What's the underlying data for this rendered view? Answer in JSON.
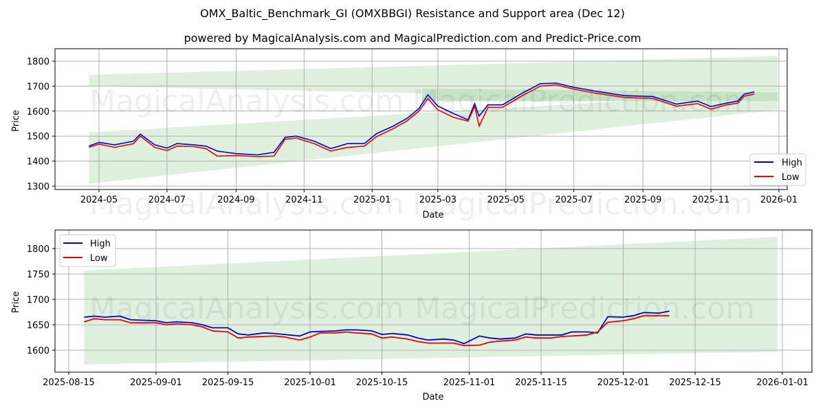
{
  "header": {
    "title": "OMX_Baltic_Benchmark_GI (OMXBBGI) Resistance and Support area (Dec 12)",
    "subtitle": "powered by MagicalAnalysis.com and MagicalPrediction.com and Predict-Price.com"
  },
  "watermarks": [
    "MagicalAnalysis.com",
    "MagicalPrediction.com"
  ],
  "colors": {
    "high": "#0000cc",
    "low": "#ee0000",
    "band_light": "#dff0df",
    "band_dark": "#c6e3c6",
    "grid": "#b0b0b0"
  },
  "chart_data": [
    {
      "type": "line",
      "title": "",
      "xlabel": "Date",
      "ylabel": "Price",
      "ylim": [
        1280,
        1850
      ],
      "yticks": [
        1300,
        1400,
        1500,
        1600,
        1700,
        1800
      ],
      "xticks": [
        "2024-05",
        "2024-07",
        "2024-09",
        "2024-11",
        "2025-01",
        "2025-03",
        "2025-05",
        "2025-07",
        "2025-09",
        "2025-11",
        "2026-01"
      ],
      "grid": true,
      "legend": {
        "position": "lower right",
        "entries": [
          "High",
          "Low"
        ]
      },
      "x": [
        "2024-04-22",
        "2024-05-01",
        "2024-05-15",
        "2024-06-01",
        "2024-06-07",
        "2024-06-20",
        "2024-07-01",
        "2024-07-10",
        "2024-07-25",
        "2024-08-05",
        "2024-08-15",
        "2024-09-01",
        "2024-09-20",
        "2024-10-05",
        "2024-10-15",
        "2024-10-25",
        "2024-11-10",
        "2024-11-25",
        "2024-12-10",
        "2024-12-25",
        "2025-01-05",
        "2025-01-20",
        "2025-02-01",
        "2025-02-12",
        "2025-02-20",
        "2025-03-01",
        "2025-03-15",
        "2025-03-28",
        "2025-04-03",
        "2025-04-07",
        "2025-04-15",
        "2025-04-28",
        "2025-05-15",
        "2025-06-01",
        "2025-06-15",
        "2025-07-01",
        "2025-07-20",
        "2025-08-15",
        "2025-09-10",
        "2025-10-01",
        "2025-10-20",
        "2025-11-01",
        "2025-11-15",
        "2025-11-25",
        "2025-12-01",
        "2025-12-10"
      ],
      "series": [
        {
          "name": "High",
          "values": [
            1460,
            1475,
            1465,
            1480,
            1508,
            1465,
            1452,
            1470,
            1465,
            1460,
            1440,
            1430,
            1425,
            1435,
            1495,
            1500,
            1480,
            1450,
            1470,
            1470,
            1510,
            1540,
            1570,
            1610,
            1665,
            1620,
            1590,
            1565,
            1630,
            1580,
            1625,
            1625,
            1670,
            1710,
            1712,
            1695,
            1680,
            1662,
            1658,
            1628,
            1640,
            1618,
            1632,
            1640,
            1668,
            1677
          ]
        },
        {
          "name": "Low",
          "values": [
            1455,
            1468,
            1455,
            1470,
            1500,
            1455,
            1442,
            1460,
            1458,
            1450,
            1420,
            1422,
            1418,
            1420,
            1488,
            1492,
            1470,
            1440,
            1455,
            1460,
            1498,
            1530,
            1560,
            1600,
            1650,
            1605,
            1575,
            1560,
            1620,
            1540,
            1615,
            1615,
            1660,
            1700,
            1705,
            1688,
            1672,
            1655,
            1650,
            1620,
            1630,
            1608,
            1625,
            1632,
            1660,
            1668
          ]
        }
      ],
      "bands": [
        {
          "name": "resistance-upper",
          "x_start": "2024-04-22",
          "x_end": "2025-12-31",
          "start": [
            1700,
            1745
          ],
          "end": [
            1640,
            1820
          ]
        },
        {
          "name": "support-channel",
          "x_start": "2024-04-22",
          "x_end": "2025-12-31",
          "start": [
            1310,
            1515
          ],
          "end": [
            1605,
            1675
          ]
        }
      ]
    },
    {
      "type": "line",
      "title": "",
      "xlabel": "Date",
      "ylabel": "Price",
      "ylim": [
        1555,
        1835
      ],
      "yticks": [
        1600,
        1650,
        1700,
        1750,
        1800
      ],
      "xticks": [
        "2025-08-15",
        "2025-09-01",
        "2025-09-15",
        "2025-10-01",
        "2025-10-15",
        "2025-11-01",
        "2025-11-15",
        "2025-12-01",
        "2025-12-15",
        "2026-01-01"
      ],
      "grid": true,
      "legend": {
        "position": "upper left",
        "entries": [
          "High",
          "Low"
        ]
      },
      "x": [
        "2025-08-18",
        "2025-08-20",
        "2025-08-22",
        "2025-08-25",
        "2025-08-27",
        "2025-09-01",
        "2025-09-03",
        "2025-09-05",
        "2025-09-08",
        "2025-09-10",
        "2025-09-12",
        "2025-09-15",
        "2025-09-17",
        "2025-09-19",
        "2025-09-22",
        "2025-09-24",
        "2025-09-26",
        "2025-09-29",
        "2025-10-01",
        "2025-10-03",
        "2025-10-06",
        "2025-10-08",
        "2025-10-10",
        "2025-10-13",
        "2025-10-15",
        "2025-10-17",
        "2025-10-20",
        "2025-10-22",
        "2025-10-24",
        "2025-10-27",
        "2025-10-29",
        "2025-10-31",
        "2025-11-03",
        "2025-11-05",
        "2025-11-07",
        "2025-11-10",
        "2025-11-12",
        "2025-11-14",
        "2025-11-17",
        "2025-11-19",
        "2025-11-21",
        "2025-11-24",
        "2025-11-26",
        "2025-11-28",
        "2025-12-01",
        "2025-12-03",
        "2025-12-05",
        "2025-12-08",
        "2025-12-10"
      ],
      "series": [
        {
          "name": "High",
          "values": [
            1665,
            1667,
            1665,
            1667,
            1660,
            1658,
            1654,
            1656,
            1654,
            1650,
            1644,
            1644,
            1632,
            1630,
            1634,
            1633,
            1631,
            1628,
            1636,
            1637,
            1638,
            1640,
            1640,
            1638,
            1631,
            1633,
            1630,
            1624,
            1620,
            1622,
            1620,
            1613,
            1628,
            1624,
            1622,
            1624,
            1632,
            1630,
            1630,
            1630,
            1636,
            1636,
            1634,
            1666,
            1665,
            1668,
            1674,
            1673,
            1677
          ]
        },
        {
          "name": "Low",
          "values": [
            1656,
            1662,
            1660,
            1660,
            1654,
            1654,
            1650,
            1652,
            1650,
            1646,
            1638,
            1636,
            1624,
            1626,
            1627,
            1628,
            1626,
            1620,
            1626,
            1634,
            1634,
            1636,
            1634,
            1632,
            1624,
            1626,
            1622,
            1617,
            1614,
            1614,
            1614,
            1609,
            1610,
            1616,
            1618,
            1620,
            1626,
            1624,
            1624,
            1627,
            1628,
            1630,
            1636,
            1655,
            1658,
            1662,
            1668,
            1668,
            1668
          ]
        }
      ],
      "bands": [
        {
          "name": "resistance-upper",
          "x_start": "2025-08-18",
          "x_end": "2025-12-31",
          "start": [
            1572,
            1757
          ],
          "end": [
            1597,
            1823
          ]
        },
        {
          "name": "support-channel",
          "x_start": "2025-08-18",
          "x_end": "2025-12-31",
          "start": [
            1628,
            1675
          ],
          "end": [
            1638,
            1675
          ]
        }
      ]
    }
  ]
}
